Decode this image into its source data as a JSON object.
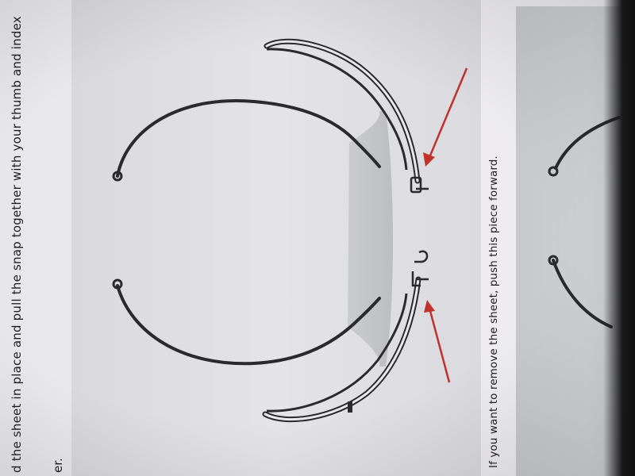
{
  "instructions": {
    "line1": "d the sheet in place and pull the snap together with your thumb and index",
    "line2": "er."
  },
  "caption": "If you want to remove the sheet, push this piece forward.",
  "colors": {
    "arrow": "#c0322b",
    "frame": "#2a2a2c",
    "panel": "#c9cacf"
  }
}
